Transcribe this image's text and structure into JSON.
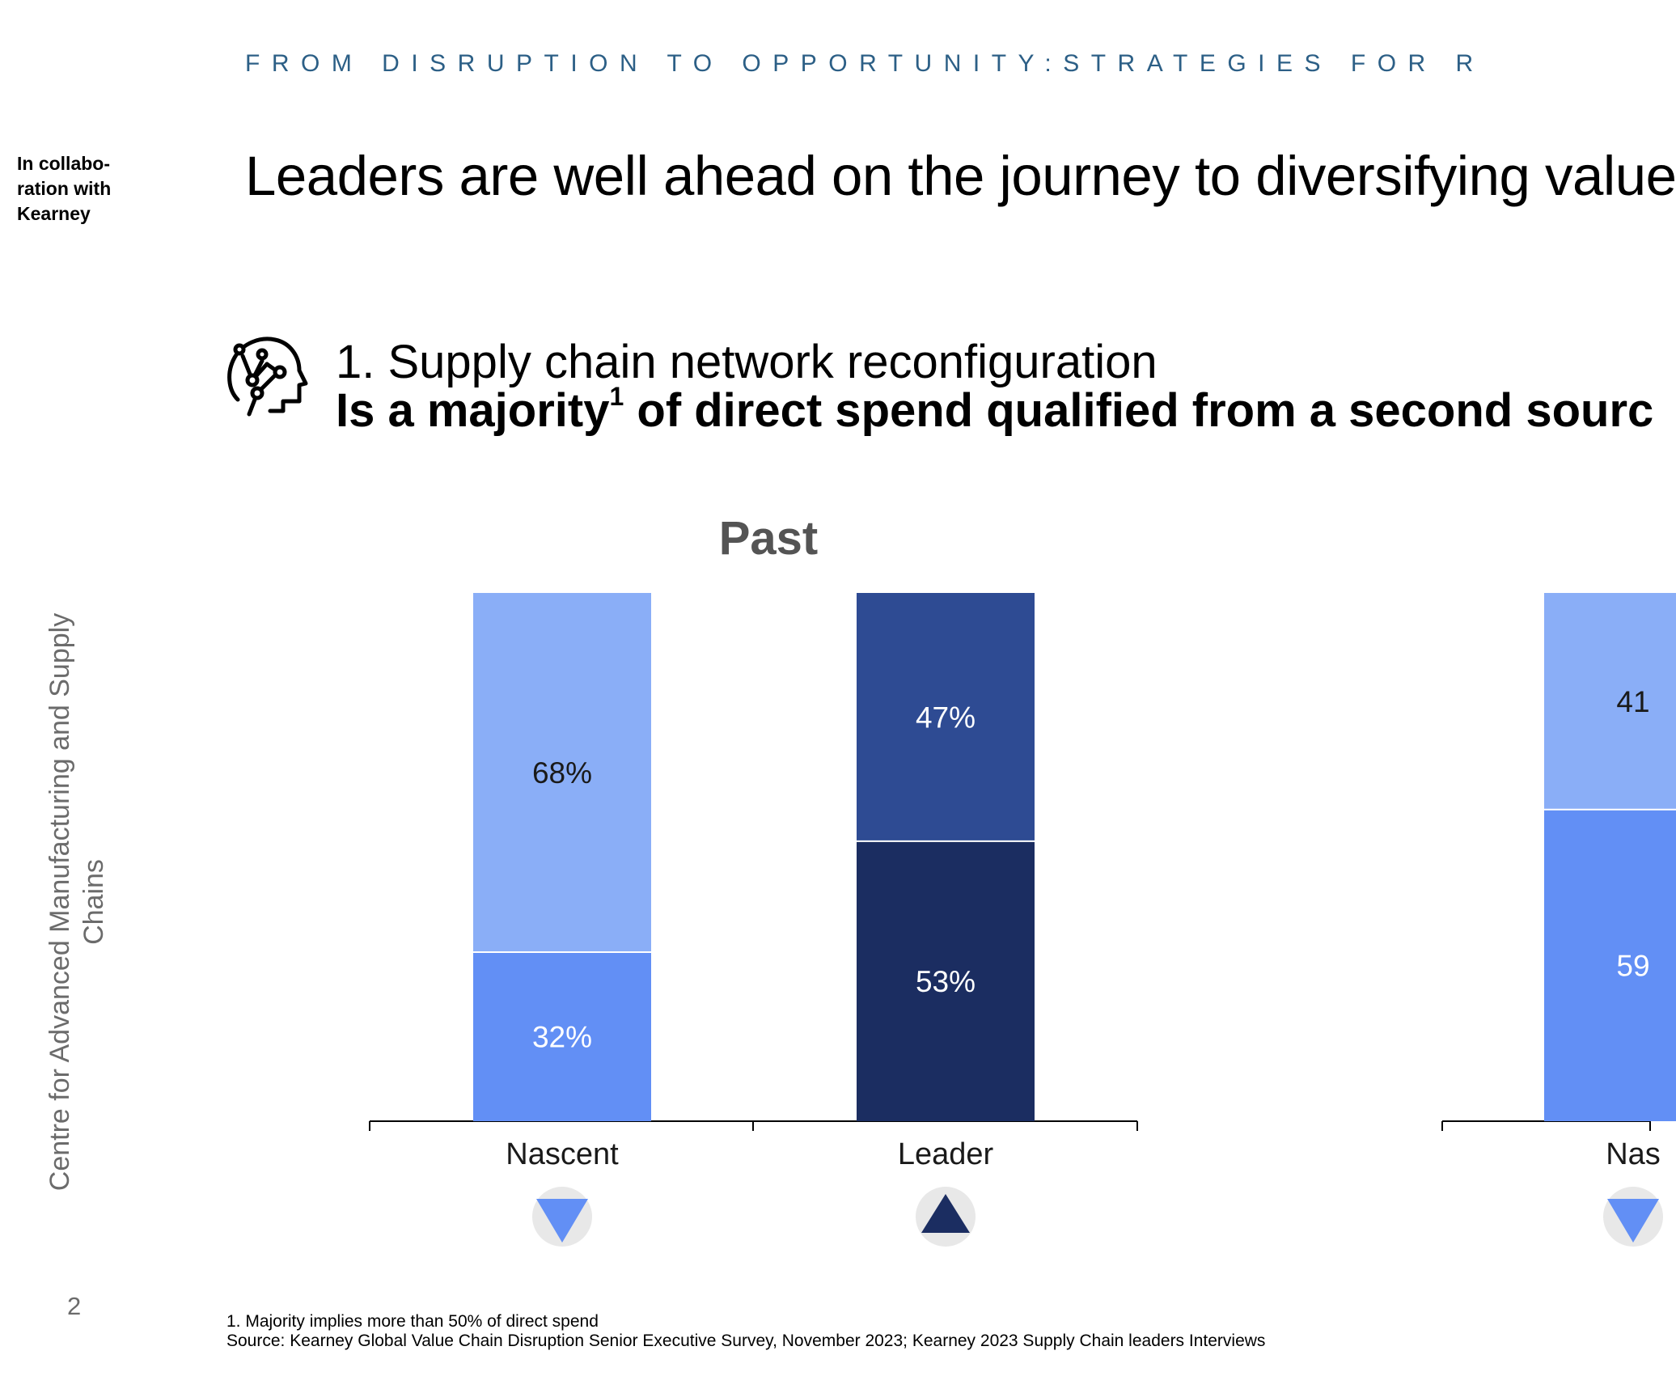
{
  "header": {
    "kicker": "FROM DISRUPTION TO OPPORTUNITY:STRATEGIES FOR R",
    "collab_note": "In collabo-ration with Kearney",
    "headline": "Leaders are well ahead on the journey to diversifying value"
  },
  "sidebar": {
    "org_name": "Centre for Advanced Manufacturing and Supply Chains",
    "page_number": "2"
  },
  "section": {
    "icon": "head-network-icon",
    "title": "1. Supply chain network reconfiguration",
    "question_pre": "Is a majority",
    "question_sup": "1",
    "question_post": " of direct spend qualified from a second sourc"
  },
  "colors": {
    "nascent_top": "#8aaef7",
    "nascent_bottom": "#628ff5",
    "leader_top": "#2e4b93",
    "leader_bottom": "#1b2d61",
    "indicator_bg": "#e8e8e8",
    "panel_title": "#545454"
  },
  "chart_data": [
    {
      "type": "bar",
      "stacked": true,
      "title": "Past",
      "categories": [
        "Nascent",
        "Leader"
      ],
      "series": [
        {
          "name": "bottom",
          "values": [
            32,
            53
          ]
        },
        {
          "name": "top",
          "values": [
            68,
            47
          ]
        }
      ],
      "labels": [
        [
          "32%",
          "68%"
        ],
        [
          "53%",
          "47%"
        ]
      ],
      "indicators": [
        "down",
        "up"
      ],
      "ylim": [
        0,
        100
      ]
    },
    {
      "type": "bar",
      "stacked": true,
      "title": "",
      "categories": [
        "Nas"
      ],
      "series": [
        {
          "name": "bottom",
          "values": [
            59
          ]
        },
        {
          "name": "top",
          "values": [
            41
          ]
        }
      ],
      "labels": [
        [
          "59",
          "41"
        ]
      ],
      "indicators": [
        "down"
      ],
      "ylim": [
        0,
        100
      ]
    }
  ],
  "footnotes": {
    "note1": "1. Majority implies more than 50% of direct spend",
    "source": "Source: Kearney Global Value Chain Disruption Senior Executive Survey, November 2023; Kearney 2023 Supply Chain leaders Interviews"
  }
}
